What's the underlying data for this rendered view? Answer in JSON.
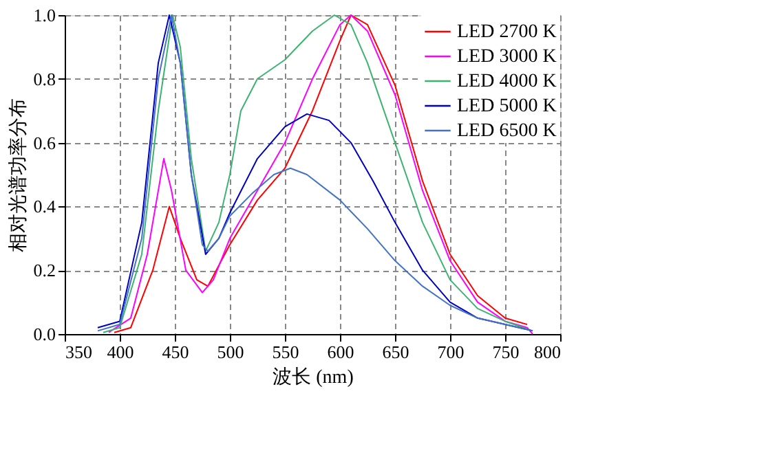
{
  "chart_data": {
    "type": "line",
    "xlabel": "波长 (nm)",
    "ylabel": "相对光谱功率分布",
    "xlim": [
      350,
      800
    ],
    "xticks": [
      350,
      400,
      450,
      500,
      550,
      600,
      650,
      700,
      750,
      800
    ],
    "ylim": [
      0,
      1.0
    ],
    "yticks": [
      {
        "value": 0,
        "label": "0.0"
      },
      0.2,
      0.4,
      0.6,
      0.8,
      {
        "value": 1,
        "label": "1.0"
      }
    ],
    "grid": true,
    "legend": "top right",
    "marker": "none",
    "line_style": "solid",
    "series": [
      {
        "name": "LED 2700 K",
        "color": "#ff0000",
        "x": [
          395,
          410,
          430,
          445,
          455,
          470,
          480,
          500,
          525,
          550,
          575,
          600,
          610,
          625,
          650,
          675,
          700,
          725,
          750,
          770
        ],
        "values": [
          0.005,
          0.02,
          0.2,
          0.4,
          0.3,
          0.17,
          0.15,
          0.28,
          0.42,
          0.52,
          0.7,
          0.92,
          1.0,
          0.97,
          0.78,
          0.48,
          0.25,
          0.12,
          0.05,
          0.03
        ]
      },
      {
        "name": "LED 3000 K",
        "color": "#ff00ff",
        "x": [
          390,
          410,
          425,
          440,
          447,
          460,
          475,
          485,
          500,
          525,
          550,
          575,
          600,
          610,
          625,
          650,
          675,
          700,
          725,
          750,
          770,
          775
        ],
        "values": [
          0.005,
          0.05,
          0.25,
          0.55,
          0.45,
          0.2,
          0.13,
          0.17,
          0.3,
          0.45,
          0.6,
          0.8,
          0.97,
          1.0,
          0.95,
          0.75,
          0.45,
          0.23,
          0.1,
          0.04,
          0.02,
          0.0
        ]
      },
      {
        "name": "LED 4000 K",
        "color": "#3cb371",
        "x": [
          385,
          400,
          420,
          435,
          448,
          455,
          465,
          478,
          490,
          500,
          510,
          525,
          550,
          575,
          595,
          610,
          625,
          650,
          675,
          700,
          725,
          750,
          775
        ],
        "values": [
          0.005,
          0.02,
          0.25,
          0.7,
          1.0,
          0.9,
          0.55,
          0.26,
          0.35,
          0.5,
          0.7,
          0.8,
          0.86,
          0.95,
          1.0,
          0.97,
          0.85,
          0.6,
          0.35,
          0.17,
          0.08,
          0.04,
          0.01
        ]
      },
      {
        "name": "LED 5000 K",
        "color": "#0000c0",
        "x": [
          380,
          400,
          420,
          435,
          445,
          455,
          465,
          478,
          490,
          500,
          525,
          550,
          570,
          590,
          610,
          630,
          650,
          675,
          700,
          725,
          750,
          775
        ],
        "values": [
          0.02,
          0.04,
          0.35,
          0.85,
          1.0,
          0.85,
          0.5,
          0.25,
          0.3,
          0.38,
          0.55,
          0.65,
          0.69,
          0.67,
          0.6,
          0.48,
          0.35,
          0.2,
          0.1,
          0.05,
          0.03,
          0.01
        ]
      },
      {
        "name": "LED 6500 K",
        "color": "#4472c4",
        "x": [
          380,
          400,
          420,
          435,
          447,
          455,
          465,
          475,
          480,
          490,
          500,
          520,
          540,
          555,
          570,
          600,
          625,
          650,
          675,
          700,
          725,
          750,
          775
        ],
        "values": [
          0.01,
          0.03,
          0.3,
          0.8,
          1.0,
          0.85,
          0.5,
          0.28,
          0.26,
          0.3,
          0.37,
          0.44,
          0.5,
          0.52,
          0.5,
          0.42,
          0.33,
          0.23,
          0.15,
          0.09,
          0.05,
          0.03,
          0.01
        ]
      }
    ]
  }
}
